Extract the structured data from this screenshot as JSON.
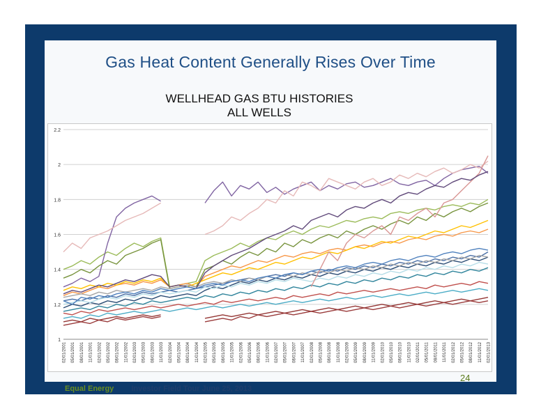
{
  "slide": {
    "title": "Gas Heat Content Generally Rises Over Time",
    "page_number": "24",
    "footer_company": "Equal Energy",
    "footer_event": "Investor Field Tour June 25, 2013"
  },
  "colors": {
    "frame": "#0d3a6b",
    "title": "#1f4f86",
    "footer_company": "#6a8f1f",
    "footer_event": "#1f3d6b",
    "gridline": "#d0d0d0"
  },
  "chart_data": {
    "type": "line",
    "title_lines": [
      "WELLHEAD GAS BTU HISTORIES",
      "ALL WELLS"
    ],
    "xlabel": "",
    "ylabel": "",
    "ylim": [
      1,
      2.2
    ],
    "y_ticks": [
      "1",
      "1.2",
      "1.4",
      "1.6",
      "1.8",
      "2",
      "2.2"
    ],
    "grid": true,
    "legend": "none",
    "x_ticks": [
      "02/01/2001",
      "05/01/2001",
      "08/01/2001",
      "11/01/2001",
      "02/01/2002",
      "05/01/2002",
      "08/01/2002",
      "11/01/2002",
      "02/01/2003",
      "05/01/2003",
      "08/01/2003",
      "11/01/2003",
      "02/01/2004",
      "05/01/2004",
      "08/01/2004",
      "11/01/2004",
      "02/01/2005",
      "05/01/2005",
      "08/01/2005",
      "11/01/2005",
      "02/01/2006",
      "05/01/2006",
      "08/01/2006",
      "11/01/2006",
      "02/01/2007",
      "05/01/2007",
      "08/01/2007",
      "11/01/2007",
      "02/01/2008",
      "05/01/2008",
      "08/01/2008",
      "11/01/2008",
      "02/01/2009",
      "05/01/2009",
      "08/01/2009",
      "11/01/2009",
      "02/01/2010",
      "05/01/2010",
      "08/01/2010",
      "11/01/2010",
      "02/01/2011",
      "05/01/2011",
      "08/01/2011",
      "11/01/2011",
      "02/01/2012",
      "05/01/2012",
      "08/01/2012",
      "11/01/2012",
      "02/01/2013"
    ],
    "series_note": "many unlabeled well series; values approximate",
    "series": [
      {
        "color": "#4a6fa5",
        "values": [
          1.22,
          1.23,
          1.22,
          1.24,
          1.23,
          1.25,
          1.24,
          1.26,
          1.25,
          1.27,
          1.26,
          1.27,
          1.28,
          1.27,
          1.28,
          1.29,
          1.3,
          1.31,
          1.32,
          1.33,
          1.34,
          1.35,
          1.34,
          1.36,
          1.37,
          1.36,
          1.38,
          1.37,
          1.39,
          1.38,
          1.4,
          1.39,
          1.41,
          1.4,
          1.42,
          1.41,
          1.43,
          1.42,
          1.44,
          1.43,
          1.45,
          1.44,
          1.46,
          1.45,
          1.47,
          1.46,
          1.48,
          1.47,
          1.5
        ]
      },
      {
        "color": "#c0504d",
        "values": [
          1.15,
          1.14,
          1.16,
          1.15,
          1.17,
          1.16,
          1.17,
          1.18,
          1.17,
          1.18,
          1.19,
          1.18,
          1.19,
          1.2,
          1.19,
          1.2,
          1.21,
          1.2,
          1.22,
          1.21,
          1.22,
          1.23,
          1.22,
          1.23,
          1.24,
          1.23,
          1.25,
          1.24,
          1.25,
          1.26,
          1.25,
          1.27,
          1.26,
          1.27,
          1.28,
          1.27,
          1.28,
          1.29,
          1.28,
          1.29,
          1.3,
          1.29,
          1.31,
          1.3,
          1.31,
          1.32,
          1.31,
          1.33,
          1.32
        ]
      },
      {
        "color": "#9bbb59",
        "values": [
          1.4,
          1.42,
          1.45,
          1.43,
          1.47,
          1.5,
          1.48,
          1.52,
          1.55,
          1.53,
          1.56,
          1.58,
          1.3,
          1.31,
          1.32,
          1.33,
          1.45,
          1.48,
          1.5,
          1.52,
          1.55,
          1.53,
          1.56,
          1.58,
          1.57,
          1.6,
          1.62,
          1.6,
          1.63,
          1.65,
          1.64,
          1.66,
          1.68,
          1.67,
          1.69,
          1.7,
          1.69,
          1.72,
          1.73,
          1.72,
          1.74,
          1.75,
          1.74,
          1.76,
          1.77,
          1.76,
          1.78,
          1.77,
          1.8
        ]
      },
      {
        "color": "#8064a2",
        "values": [
          1.3,
          1.32,
          1.35,
          1.33,
          1.36,
          1.55,
          1.7,
          1.75,
          1.78,
          1.8,
          1.82,
          1.79,
          null,
          null,
          null,
          null,
          1.78,
          1.85,
          1.9,
          1.82,
          1.88,
          1.86,
          1.9,
          1.84,
          1.87,
          1.83,
          1.86,
          1.88,
          1.9,
          1.85,
          1.88,
          1.86,
          1.89,
          1.9,
          1.87,
          1.88,
          1.9,
          1.92,
          1.89,
          1.88,
          1.9,
          1.91,
          1.88,
          1.92,
          1.95,
          1.97,
          1.98,
          1.99,
          1.95
        ]
      },
      {
        "color": "#4bacc6",
        "values": [
          1.12,
          1.13,
          1.12,
          1.14,
          1.13,
          1.15,
          1.14,
          1.15,
          1.16,
          1.15,
          1.16,
          1.17,
          1.16,
          1.17,
          1.18,
          1.17,
          1.18,
          1.19,
          1.18,
          1.19,
          1.2,
          1.19,
          1.2,
          1.21,
          1.2,
          1.21,
          1.22,
          1.21,
          1.22,
          1.23,
          1.22,
          1.23,
          1.24,
          1.23,
          1.24,
          1.25,
          1.24,
          1.25,
          1.26,
          1.25,
          1.26,
          1.27,
          1.26,
          1.27,
          1.28,
          1.27,
          1.28,
          1.29,
          1.28
        ]
      },
      {
        "color": "#f79646",
        "values": [
          1.25,
          1.27,
          1.26,
          1.28,
          1.3,
          1.29,
          1.31,
          1.32,
          1.31,
          1.33,
          1.32,
          1.34,
          1.3,
          1.31,
          1.32,
          1.3,
          1.36,
          1.38,
          1.4,
          1.42,
          1.41,
          1.43,
          1.45,
          1.44,
          1.46,
          1.48,
          1.47,
          1.49,
          1.5,
          1.49,
          1.51,
          1.52,
          1.51,
          1.53,
          1.54,
          1.53,
          1.55,
          1.56,
          1.55,
          1.57,
          1.58,
          1.57,
          1.59,
          1.6,
          1.59,
          1.61,
          1.62,
          1.61,
          1.63
        ]
      },
      {
        "color": "#2c4d75",
        "values": [
          1.18,
          1.2,
          1.19,
          1.21,
          1.2,
          1.22,
          1.21,
          1.23,
          1.22,
          1.24,
          1.23,
          1.25,
          1.24,
          1.25,
          1.26,
          1.25,
          1.28,
          1.3,
          1.29,
          1.31,
          1.33,
          1.32,
          1.34,
          1.33,
          1.35,
          1.34,
          1.36,
          1.35,
          1.37,
          1.36,
          1.38,
          1.37,
          1.39,
          1.38,
          1.4,
          1.39,
          1.41,
          1.4,
          1.42,
          1.41,
          1.43,
          1.42,
          1.44,
          1.43,
          1.45,
          1.44,
          1.46,
          1.45,
          1.47
        ]
      },
      {
        "color": "#e6b9b8",
        "values": [
          1.5,
          1.55,
          1.52,
          1.58,
          1.6,
          1.62,
          1.65,
          1.68,
          1.7,
          1.72,
          1.75,
          1.78,
          null,
          null,
          null,
          null,
          1.6,
          1.62,
          1.65,
          1.7,
          1.68,
          1.72,
          1.75,
          1.8,
          1.78,
          1.85,
          1.82,
          1.9,
          1.88,
          1.85,
          1.92,
          1.9,
          1.88,
          1.86,
          1.9,
          1.92,
          1.88,
          1.9,
          1.94,
          1.92,
          1.95,
          1.93,
          1.96,
          1.98,
          1.95,
          1.97,
          2.0,
          1.98,
          2.02
        ]
      },
      {
        "color": "#77933c",
        "values": [
          1.35,
          1.37,
          1.4,
          1.38,
          1.42,
          1.45,
          1.43,
          1.48,
          1.5,
          1.52,
          1.55,
          1.57,
          1.29,
          1.3,
          1.31,
          1.3,
          1.4,
          1.42,
          1.45,
          1.43,
          1.47,
          1.5,
          1.48,
          1.52,
          1.5,
          1.55,
          1.53,
          1.57,
          1.55,
          1.58,
          1.6,
          1.58,
          1.62,
          1.6,
          1.63,
          1.65,
          1.63,
          1.66,
          1.68,
          1.66,
          1.7,
          1.68,
          1.72,
          1.7,
          1.73,
          1.75,
          1.73,
          1.76,
          1.78
        ]
      },
      {
        "color": "#b7dee8",
        "values": [
          1.2,
          1.21,
          1.22,
          1.21,
          1.23,
          1.24,
          1.23,
          1.25,
          1.24,
          1.26,
          1.25,
          1.27,
          1.26,
          1.27,
          1.28,
          1.27,
          1.3,
          1.29,
          1.31,
          1.3,
          1.32,
          1.31,
          1.33,
          1.32,
          1.34,
          1.33,
          1.35,
          1.34,
          1.33,
          1.35,
          1.34,
          1.36,
          1.35,
          1.37,
          1.36,
          1.38,
          1.37,
          1.39,
          1.38,
          1.4,
          1.39,
          1.41,
          1.4,
          1.42,
          1.41,
          1.43,
          1.42,
          1.44,
          1.43
        ]
      },
      {
        "color": "#953735",
        "values": [
          1.1,
          1.11,
          1.1,
          1.12,
          1.11,
          1.12,
          1.13,
          1.12,
          1.13,
          1.14,
          1.13,
          1.14,
          null,
          null,
          null,
          null,
          1.12,
          1.13,
          1.14,
          1.13,
          1.14,
          1.15,
          1.14,
          1.15,
          1.16,
          1.15,
          1.16,
          1.17,
          1.16,
          1.17,
          1.18,
          1.17,
          1.18,
          1.19,
          1.18,
          1.19,
          1.2,
          1.19,
          1.2,
          1.21,
          1.2,
          1.21,
          1.22,
          1.21,
          1.22,
          1.23,
          1.22,
          1.23,
          1.24
        ]
      },
      {
        "color": "#ffc000",
        "values": [
          1.28,
          1.3,
          1.29,
          1.31,
          1.3,
          1.32,
          1.31,
          1.33,
          1.32,
          1.34,
          1.33,
          1.35,
          1.3,
          1.31,
          1.3,
          1.32,
          1.34,
          1.36,
          1.38,
          1.37,
          1.39,
          1.41,
          1.4,
          1.42,
          1.44,
          1.43,
          1.45,
          1.47,
          1.46,
          1.48,
          1.5,
          1.49,
          1.51,
          1.53,
          1.52,
          1.54,
          1.56,
          1.55,
          1.57,
          1.59,
          1.58,
          1.6,
          1.62,
          1.61,
          1.63,
          1.65,
          1.64,
          1.66,
          1.68
        ]
      },
      {
        "color": "#31859c",
        "values": [
          1.16,
          1.17,
          1.18,
          1.17,
          1.19,
          1.18,
          1.2,
          1.19,
          1.21,
          1.2,
          1.22,
          1.21,
          1.22,
          1.23,
          1.24,
          1.23,
          1.25,
          1.24,
          1.26,
          1.25,
          1.27,
          1.26,
          1.28,
          1.27,
          1.29,
          1.28,
          1.3,
          1.29,
          1.31,
          1.3,
          1.32,
          1.31,
          1.33,
          1.32,
          1.34,
          1.33,
          1.35,
          1.34,
          1.36,
          1.35,
          1.37,
          1.36,
          1.38,
          1.37,
          1.39,
          1.38,
          1.4,
          1.39,
          1.41
        ]
      },
      {
        "color": "#a6a6a6",
        "values": [
          1.24,
          1.25,
          1.26,
          1.25,
          1.27,
          1.26,
          1.28,
          1.27,
          1.28,
          1.29,
          1.28,
          1.3,
          1.29,
          1.3,
          1.31,
          1.3,
          1.32,
          1.33,
          1.32,
          1.34,
          1.33,
          1.35,
          1.34,
          1.36,
          1.35,
          1.37,
          1.36,
          1.38,
          1.37,
          1.39,
          1.38,
          1.4,
          1.39,
          1.41,
          1.4,
          1.42,
          1.41,
          1.43,
          1.42,
          1.44,
          1.43,
          1.45,
          1.44,
          1.46,
          1.45,
          1.47,
          1.46,
          1.48,
          1.47
        ]
      },
      {
        "color": "#d99694",
        "values": [
          null,
          null,
          null,
          null,
          null,
          null,
          null,
          null,
          null,
          null,
          null,
          null,
          null,
          null,
          null,
          null,
          null,
          null,
          null,
          null,
          null,
          null,
          null,
          null,
          null,
          null,
          null,
          null,
          1.3,
          1.4,
          1.5,
          1.45,
          1.55,
          1.6,
          1.58,
          1.62,
          1.65,
          1.6,
          1.7,
          1.68,
          1.72,
          1.75,
          1.7,
          1.78,
          1.8,
          1.85,
          1.9,
          1.95,
          2.05
        ]
      },
      {
        "color": "#60497a",
        "values": [
          1.26,
          1.28,
          1.27,
          1.29,
          1.31,
          1.3,
          1.32,
          1.34,
          1.33,
          1.35,
          1.37,
          1.36,
          1.3,
          1.31,
          1.3,
          1.29,
          1.38,
          1.42,
          1.45,
          1.48,
          1.5,
          1.52,
          1.55,
          1.58,
          1.6,
          1.62,
          1.65,
          1.63,
          1.68,
          1.7,
          1.72,
          1.7,
          1.74,
          1.76,
          1.75,
          1.78,
          1.8,
          1.78,
          1.82,
          1.84,
          1.83,
          1.86,
          1.88,
          1.87,
          1.9,
          1.92,
          1.91,
          1.94,
          1.96
        ]
      },
      {
        "color": "#4f81bd",
        "values": [
          1.22,
          1.2,
          1.24,
          1.23,
          1.25,
          1.24,
          1.26,
          1.27,
          1.26,
          1.28,
          1.27,
          1.29,
          1.28,
          1.29,
          1.3,
          1.29,
          1.31,
          1.32,
          1.31,
          1.33,
          1.34,
          1.33,
          1.35,
          1.36,
          1.35,
          1.37,
          1.38,
          1.37,
          1.39,
          1.4,
          1.39,
          1.41,
          1.42,
          1.41,
          1.43,
          1.44,
          1.43,
          1.45,
          1.46,
          1.45,
          1.47,
          1.48,
          1.47,
          1.49,
          1.5,
          1.49,
          1.51,
          1.52,
          1.51
        ]
      },
      {
        "color": "#9a3b3b",
        "values": [
          1.08,
          1.09,
          1.1,
          1.09,
          1.11,
          1.1,
          1.12,
          1.11,
          1.12,
          1.13,
          1.12,
          1.13,
          null,
          null,
          null,
          null,
          1.1,
          1.11,
          1.12,
          1.11,
          1.13,
          1.12,
          1.14,
          1.13,
          1.14,
          1.15,
          1.14,
          1.15,
          1.16,
          1.15,
          1.16,
          1.17,
          1.16,
          1.17,
          1.18,
          1.17,
          1.18,
          1.19,
          1.18,
          1.19,
          1.2,
          1.19,
          1.2,
          1.21,
          1.2,
          1.21,
          1.22,
          1.21,
          1.22
        ]
      }
    ]
  }
}
